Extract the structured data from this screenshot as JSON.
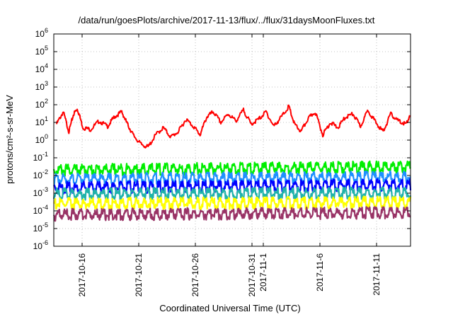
{
  "chart_data": {
    "type": "line",
    "title": "/data/run/goesPlots/archive/2017-11-13/flux/../flux/31daysMoonFluxes.txt",
    "xlabel": "Coordinated Universal Time (UTC)",
    "ylabel": "protons/cm²-s-sr-MeV",
    "yscale": "log",
    "ylim": [
      1e-06,
      1000000.0
    ],
    "xlim": [
      "2017-10-13T12:00",
      "2017-11-14T00:00"
    ],
    "grid": true,
    "legend": "none",
    "y_ticks": [
      {
        "value": 1e-06,
        "mantissa": "10",
        "exp": "-6"
      },
      {
        "value": 1e-05,
        "mantissa": "10",
        "exp": "-5"
      },
      {
        "value": 0.0001,
        "mantissa": "10",
        "exp": "-4"
      },
      {
        "value": 0.001,
        "mantissa": "10",
        "exp": "-3"
      },
      {
        "value": 0.01,
        "mantissa": "10",
        "exp": "-2"
      },
      {
        "value": 0.1,
        "mantissa": "10",
        "exp": "-1"
      },
      {
        "value": 1,
        "mantissa": "10",
        "exp": "0"
      },
      {
        "value": 10,
        "mantissa": "10",
        "exp": "1"
      },
      {
        "value": 100,
        "mantissa": "10",
        "exp": "2"
      },
      {
        "value": 1000,
        "mantissa": "10",
        "exp": "3"
      },
      {
        "value": 10000.0,
        "mantissa": "10",
        "exp": "4"
      },
      {
        "value": 100000.0,
        "mantissa": "10",
        "exp": "5"
      },
      {
        "value": 1000000.0,
        "mantissa": "10",
        "exp": "6"
      }
    ],
    "x_ticks": [
      {
        "value": "2017-10-16T00:00",
        "label": "2017-10-16"
      },
      {
        "value": "2017-10-21T00:00",
        "label": "2017-10-21"
      },
      {
        "value": "2017-10-26T00:00",
        "label": "2017-10-26"
      },
      {
        "value": "2017-10-31T00:00",
        "label": "2017-10-31"
      },
      {
        "value": "2017-11-01T00:00",
        "label": "2017-11-1"
      },
      {
        "value": "2017-11-06T00:00",
        "label": "2017-11-6"
      },
      {
        "value": "2017-11-11T00:00",
        "label": "2017-11-11"
      }
    ],
    "series": [
      {
        "color": "#ff0000",
        "x": [
          "2017-10-13T18:00",
          "2017-10-14T08:00",
          "2017-10-14T20:00",
          "2017-10-15T06:00",
          "2017-10-15T14:00",
          "2017-10-16T02:00",
          "2017-10-16T18:00",
          "2017-10-17T12:00",
          "2017-10-18T06:00",
          "2017-10-18T20:00",
          "2017-10-19T12:00",
          "2017-10-20T00:00",
          "2017-10-20T12:00",
          "2017-10-21T04:00",
          "2017-10-21T20:00",
          "2017-10-22T12:00",
          "2017-10-23T04:00",
          "2017-10-23T20:00",
          "2017-10-24T12:00",
          "2017-10-25T04:00",
          "2017-10-25T20:00",
          "2017-10-26T10:00",
          "2017-10-27T00:00",
          "2017-10-27T14:00",
          "2017-10-28T06:00",
          "2017-10-28T22:00",
          "2017-10-29T14:00",
          "2017-10-30T06:00",
          "2017-10-30T22:00",
          "2017-10-31T14:00",
          "2017-11-01T06:00",
          "2017-11-01T22:00",
          "2017-11-02T14:00",
          "2017-11-03T06:00",
          "2017-11-03T18:00",
          "2017-11-04T08:00",
          "2017-11-04T22:00",
          "2017-11-05T14:00",
          "2017-11-06T06:00",
          "2017-11-06T22:00",
          "2017-11-07T14:00",
          "2017-11-08T06:00",
          "2017-11-08T22:00",
          "2017-11-09T14:00",
          "2017-11-10T06:00",
          "2017-11-10T22:00",
          "2017-11-11T14:00",
          "2017-11-12T06:00",
          "2017-11-12T22:00",
          "2017-11-13T14:00",
          "2017-11-13T22:00"
        ],
        "values": [
          8,
          40,
          3,
          30,
          60,
          5,
          4,
          12,
          6,
          20,
          40,
          8,
          2,
          0.6,
          0.4,
          2,
          5,
          1.5,
          3,
          15,
          6,
          2,
          20,
          40,
          10,
          30,
          12,
          50,
          8,
          15,
          40,
          6,
          20,
          80,
          8,
          3,
          15,
          40,
          2,
          10,
          5,
          20,
          30,
          6,
          50,
          10,
          3,
          30,
          12,
          8,
          20
        ]
      },
      {
        "color": "#00ee00",
        "x": [
          "2017-10-13T12:00",
          "2017-11-14T00:00"
        ],
        "values": [
          0.02,
          0.03
        ]
      },
      {
        "color": "#1e90ff",
        "x": [
          "2017-10-13T12:00",
          "2017-11-14T00:00"
        ],
        "values": [
          0.006,
          0.008
        ]
      },
      {
        "color": "#0000ff",
        "x": [
          "2017-10-13T12:00",
          "2017-11-14T00:00"
        ],
        "values": [
          0.002,
          0.003
        ]
      },
      {
        "color": "#20b2aa",
        "x": [
          "2017-10-13T12:00",
          "2017-11-14T00:00"
        ],
        "values": [
          0.0009,
          0.001
        ]
      },
      {
        "color": "#ffff00",
        "x": [
          "2017-10-13T12:00",
          "2017-11-14T00:00"
        ],
        "values": [
          0.00025,
          0.0003
        ]
      },
      {
        "color": "#993366",
        "x": [
          "2017-10-13T12:00",
          "2017-11-14T00:00"
        ],
        "values": [
          6e-05,
          8e-05
        ]
      }
    ]
  }
}
